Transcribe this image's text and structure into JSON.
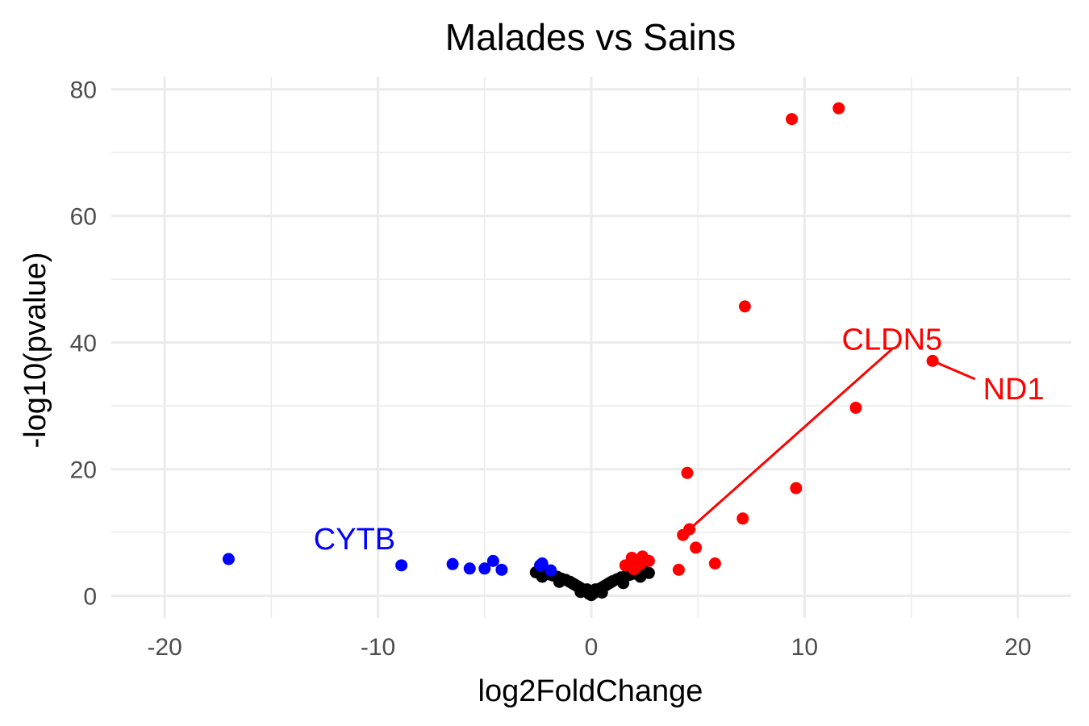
{
  "chart_data": {
    "type": "scatter",
    "title": "Malades vs Sains",
    "xlabel": "log2FoldChange",
    "ylabel": "-log10(pvalue)",
    "xlim": [
      -22.5,
      22.5
    ],
    "ylim": [
      -3.5,
      82
    ],
    "x_ticks": [
      -20,
      -10,
      0,
      10,
      20
    ],
    "x_tick_labels": [
      "-20",
      "-10",
      "0",
      "10",
      "20"
    ],
    "y_ticks": [
      0,
      20,
      40,
      60,
      80
    ],
    "y_tick_labels": [
      "0",
      "20",
      "40",
      "60",
      "80"
    ],
    "grid": true,
    "legend": "none",
    "colors": {
      "down": "#0000ff",
      "up": "#ff0000",
      "ns": "#000000"
    },
    "series": [
      {
        "group": "ns",
        "color": "#000000",
        "points": [
          [
            -2.6,
            3.7
          ],
          [
            -2.4,
            3.5
          ],
          [
            -2.2,
            3.6
          ],
          [
            -2.0,
            3.4
          ],
          [
            -1.8,
            3.2
          ],
          [
            -1.6,
            3.0
          ],
          [
            -1.4,
            2.7
          ],
          [
            -1.2,
            2.5
          ],
          [
            -1.0,
            2.2
          ],
          [
            -0.9,
            2.0
          ],
          [
            -0.8,
            1.8
          ],
          [
            -0.7,
            1.6
          ],
          [
            -0.6,
            1.4
          ],
          [
            -0.5,
            1.2
          ],
          [
            -0.4,
            1.0
          ],
          [
            -0.3,
            0.8
          ],
          [
            -0.2,
            0.6
          ],
          [
            -0.1,
            0.3
          ],
          [
            0.0,
            0.1
          ],
          [
            0.1,
            0.4
          ],
          [
            0.2,
            0.7
          ],
          [
            0.3,
            0.9
          ],
          [
            0.4,
            1.1
          ],
          [
            0.5,
            1.3
          ],
          [
            0.6,
            1.5
          ],
          [
            0.7,
            1.7
          ],
          [
            0.8,
            1.9
          ],
          [
            0.9,
            2.1
          ],
          [
            1.0,
            2.3
          ],
          [
            1.2,
            2.6
          ],
          [
            1.4,
            2.9
          ],
          [
            1.6,
            3.1
          ],
          [
            1.8,
            3.3
          ],
          [
            2.0,
            3.5
          ],
          [
            2.2,
            3.6
          ],
          [
            2.5,
            3.8
          ],
          [
            2.7,
            3.6
          ],
          [
            -1.5,
            2.2
          ],
          [
            -0.5,
            0.6
          ],
          [
            0.5,
            0.5
          ],
          [
            1.5,
            2.0
          ],
          [
            -0.2,
            1.0
          ],
          [
            0.2,
            1.0
          ],
          [
            0.0,
            0.6
          ],
          [
            -2.3,
            3.0
          ],
          [
            2.3,
            3.0
          ]
        ]
      },
      {
        "group": "down",
        "color": "#0000ff",
        "points": [
          [
            -17.0,
            5.8
          ],
          [
            -8.9,
            4.8
          ],
          [
            -6.5,
            5.0
          ],
          [
            -5.7,
            4.3
          ],
          [
            -5.0,
            4.3
          ],
          [
            -4.6,
            5.5
          ],
          [
            -4.2,
            4.1
          ],
          [
            -2.4,
            4.8
          ],
          [
            -2.3,
            5.1
          ],
          [
            -1.9,
            4.0
          ]
        ]
      },
      {
        "group": "up",
        "color": "#ff0000",
        "points": [
          [
            11.6,
            77.0
          ],
          [
            9.4,
            75.3
          ],
          [
            7.2,
            45.7
          ],
          [
            16.0,
            37.1
          ],
          [
            12.4,
            29.7
          ],
          [
            4.5,
            19.4
          ],
          [
            9.6,
            17.0
          ],
          [
            7.1,
            12.2
          ],
          [
            4.6,
            10.5
          ],
          [
            4.3,
            9.6
          ],
          [
            4.9,
            7.6
          ],
          [
            5.8,
            5.1
          ],
          [
            4.1,
            4.1
          ],
          [
            2.4,
            6.2
          ],
          [
            1.9,
            6.0
          ],
          [
            2.7,
            5.5
          ],
          [
            2.1,
            4.5
          ],
          [
            2.3,
            5.0
          ],
          [
            1.6,
            4.8
          ],
          [
            2.0,
            4.2
          ]
        ]
      }
    ],
    "annotations": [
      {
        "text": "CYTB",
        "color": "#0000ff",
        "x": -11.1,
        "y": 9.0
      },
      {
        "text": "CLDN5",
        "color": "#ff0000",
        "x": 14.1,
        "y": 40.5,
        "point": [
          4.6,
          10.5
        ]
      },
      {
        "text": "ND1",
        "color": "#ff0000",
        "x": 19.8,
        "y": 32.7,
        "point": [
          16.0,
          37.1
        ]
      }
    ]
  }
}
